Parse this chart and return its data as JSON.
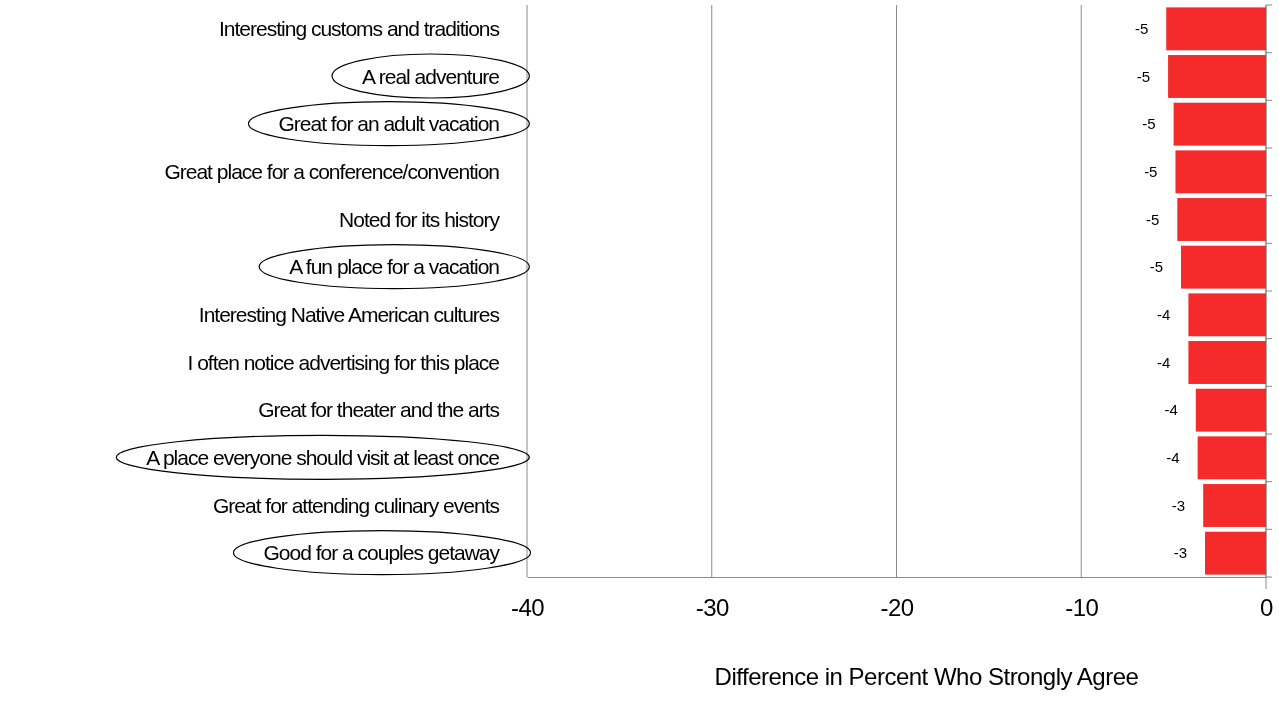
{
  "chart_data": {
    "type": "bar",
    "orientation": "horizontal",
    "categories": [
      "Interesting customs and traditions",
      "A real adventure",
      "Great for an adult vacation",
      "Great place for a conference/convention",
      "Noted for its history",
      "A fun place for a vacation",
      "Interesting Native American cultures",
      "I often notice advertising for this place",
      "Great for theater and the arts",
      "A place everyone should visit at least once",
      "Great for attending culinary events",
      "Good for a couples getaway"
    ],
    "values": [
      -5.4,
      -5.3,
      -5.0,
      -4.9,
      -4.8,
      -4.6,
      -4.2,
      -4.2,
      -3.8,
      -3.7,
      -3.4,
      -3.3
    ],
    "value_labels": [
      "-5",
      "-5",
      "-5",
      "-5",
      "-5",
      "-5",
      "-4",
      "-4",
      "-4",
      "-4",
      "-3",
      "-3"
    ],
    "color": "#f52a2a",
    "xlim": [
      -40,
      0
    ],
    "xticks": [
      -40,
      -30,
      -20,
      -10,
      0
    ],
    "xlabel": "Difference in Percent Who Strongly Agree",
    "grid": "x"
  }
}
